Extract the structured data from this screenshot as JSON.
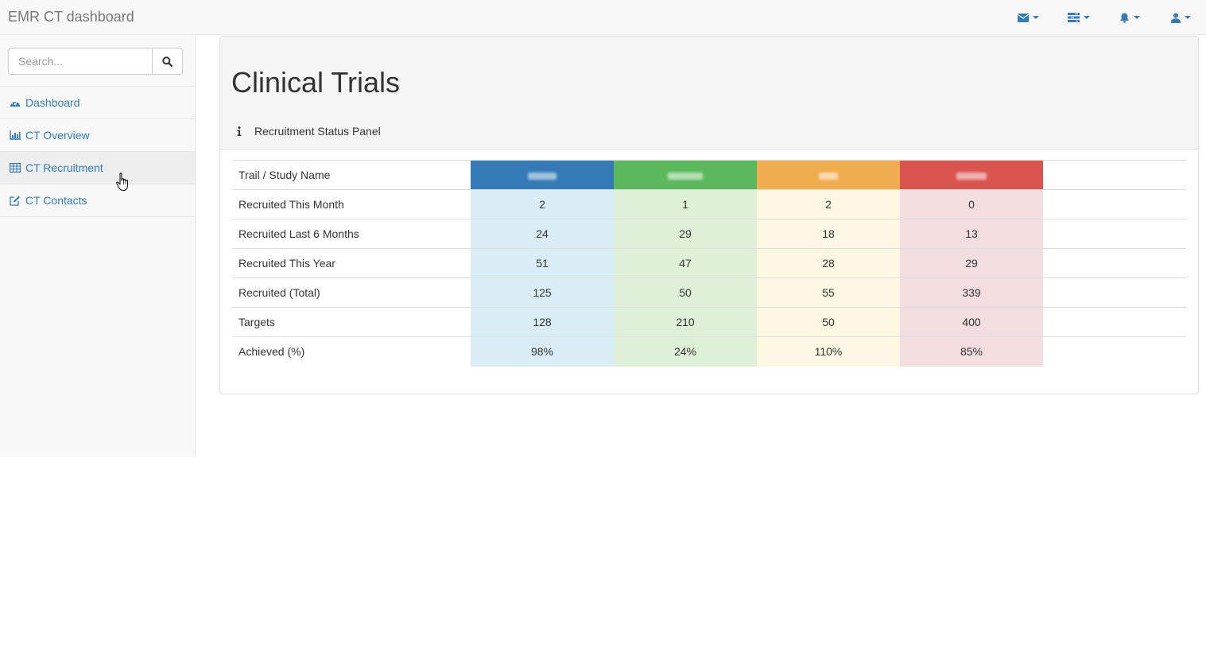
{
  "app": {
    "brand": "EMR CT dashboard"
  },
  "navbar": {
    "items": [
      {
        "icon": "envelope-icon"
      },
      {
        "icon": "tasks-icon"
      },
      {
        "icon": "bell-icon"
      },
      {
        "icon": "user-icon"
      }
    ],
    "accent_color": "#337ab7"
  },
  "sidebar": {
    "search_placeholder": "Search...",
    "items": [
      {
        "label": "Dashboard",
        "icon": "dashboard-icon"
      },
      {
        "label": "CT Overview",
        "icon": "bar-chart-icon"
      },
      {
        "label": "CT Recruitment",
        "icon": "table-icon",
        "active": true
      },
      {
        "label": "CT Contacts",
        "icon": "edit-icon"
      }
    ]
  },
  "main": {
    "title": "Clinical Trials",
    "panel_heading": "Recruitment Status Panel",
    "table": {
      "header_label": "Trail / Study Name",
      "study_colors": [
        "#337ab7",
        "#5cb85c",
        "#f0ad4e",
        "#d9534f"
      ],
      "rows": [
        {
          "label": "Recruited This Month",
          "values": [
            "2",
            "1",
            "2",
            "0"
          ]
        },
        {
          "label": "Recruited Last 6 Months",
          "values": [
            "24",
            "29",
            "18",
            "13"
          ]
        },
        {
          "label": "Recruited This Year",
          "values": [
            "51",
            "47",
            "28",
            "29"
          ]
        },
        {
          "label": "Recruited (Total)",
          "values": [
            "125",
            "50",
            "55",
            "339"
          ]
        },
        {
          "label": "Targets",
          "values": [
            "128",
            "210",
            "50",
            "400"
          ]
        },
        {
          "label": "Achieved (%)",
          "values": [
            "98%",
            "24%",
            "110%",
            "85%"
          ]
        }
      ]
    }
  }
}
